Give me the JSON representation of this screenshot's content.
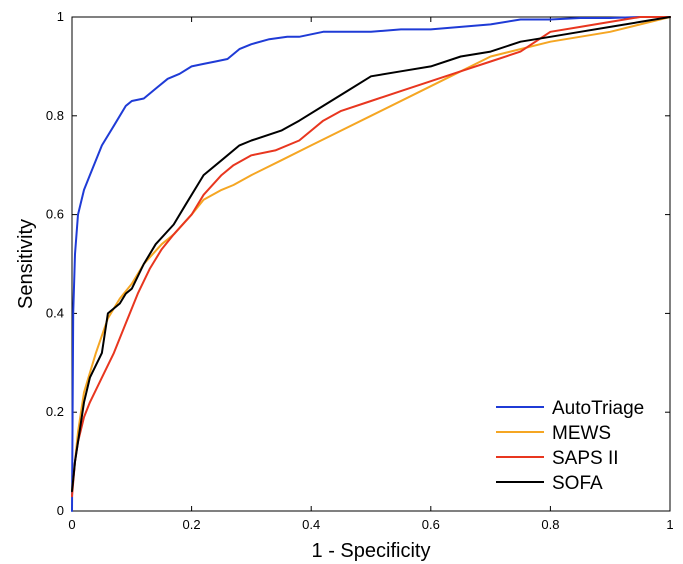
{
  "chart_data": {
    "type": "line",
    "title": "",
    "xlabel": "1 - Specificity",
    "ylabel": "Sensitivity",
    "xlim": [
      0,
      1
    ],
    "ylim": [
      0,
      1
    ],
    "xticks": [
      0,
      0.2,
      0.4,
      0.6,
      0.8,
      1
    ],
    "yticks": [
      0,
      0.2,
      0.4,
      0.6,
      0.8,
      1
    ],
    "xtick_labels": [
      "0",
      "0.2",
      "0.4",
      "0.6",
      "0.8",
      "1"
    ],
    "ytick_labels": [
      "0",
      "0.2",
      "0.4",
      "0.6",
      "0.8",
      "1"
    ],
    "grid": false,
    "legend_position": "bottom-right",
    "series": [
      {
        "name": "AutoTriage",
        "color": "#1f3bd6",
        "x": [
          0,
          0.002,
          0.005,
          0.01,
          0.02,
          0.03,
          0.05,
          0.07,
          0.09,
          0.1,
          0.12,
          0.14,
          0.16,
          0.18,
          0.2,
          0.22,
          0.24,
          0.26,
          0.28,
          0.3,
          0.33,
          0.36,
          0.38,
          0.4,
          0.42,
          0.45,
          0.5,
          0.55,
          0.6,
          0.65,
          0.7,
          0.75,
          0.8,
          0.85,
          0.9,
          0.95,
          1.0
        ],
        "y": [
          0,
          0.4,
          0.52,
          0.6,
          0.65,
          0.68,
          0.74,
          0.78,
          0.82,
          0.83,
          0.835,
          0.855,
          0.875,
          0.885,
          0.9,
          0.905,
          0.91,
          0.915,
          0.935,
          0.945,
          0.955,
          0.96,
          0.96,
          0.965,
          0.97,
          0.97,
          0.97,
          0.975,
          0.975,
          0.98,
          0.985,
          0.995,
          0.995,
          0.998,
          0.998,
          1.0,
          1.0
        ]
      },
      {
        "name": "MEWS",
        "color": "#f5a623",
        "x": [
          0,
          0.01,
          0.02,
          0.04,
          0.06,
          0.08,
          0.1,
          0.12,
          0.15,
          0.17,
          0.2,
          0.22,
          0.25,
          0.27,
          0.3,
          0.35,
          0.4,
          0.5,
          0.6,
          0.7,
          0.8,
          0.9,
          1.0
        ],
        "y": [
          0.04,
          0.16,
          0.24,
          0.32,
          0.39,
          0.43,
          0.46,
          0.5,
          0.54,
          0.56,
          0.6,
          0.63,
          0.65,
          0.66,
          0.68,
          0.71,
          0.74,
          0.8,
          0.86,
          0.92,
          0.95,
          0.97,
          1.0
        ]
      },
      {
        "name": "SAPS II",
        "color": "#e8361f",
        "x": [
          0,
          0.005,
          0.01,
          0.02,
          0.03,
          0.05,
          0.07,
          0.09,
          0.11,
          0.13,
          0.15,
          0.17,
          0.2,
          0.22,
          0.25,
          0.27,
          0.3,
          0.34,
          0.38,
          0.42,
          0.45,
          0.5,
          0.55,
          0.6,
          0.65,
          0.7,
          0.75,
          0.8,
          0.85,
          0.9,
          0.95,
          1.0
        ],
        "y": [
          0.03,
          0.1,
          0.14,
          0.19,
          0.22,
          0.27,
          0.32,
          0.38,
          0.44,
          0.49,
          0.53,
          0.56,
          0.6,
          0.64,
          0.68,
          0.7,
          0.72,
          0.73,
          0.75,
          0.79,
          0.81,
          0.83,
          0.85,
          0.87,
          0.89,
          0.91,
          0.93,
          0.97,
          0.98,
          0.99,
          1.0,
          1.0
        ]
      },
      {
        "name": "SOFA",
        "color": "#000000",
        "x": [
          0,
          0.005,
          0.01,
          0.02,
          0.03,
          0.05,
          0.06,
          0.08,
          0.09,
          0.1,
          0.12,
          0.14,
          0.17,
          0.19,
          0.21,
          0.22,
          0.25,
          0.28,
          0.3,
          0.35,
          0.38,
          0.42,
          0.46,
          0.5,
          0.55,
          0.6,
          0.65,
          0.7,
          0.75,
          0.8,
          0.85,
          0.9,
          0.95,
          1.0
        ],
        "y": [
          0.04,
          0.1,
          0.14,
          0.22,
          0.27,
          0.32,
          0.4,
          0.42,
          0.44,
          0.45,
          0.5,
          0.54,
          0.58,
          0.62,
          0.66,
          0.68,
          0.71,
          0.74,
          0.75,
          0.77,
          0.79,
          0.82,
          0.85,
          0.88,
          0.89,
          0.9,
          0.92,
          0.93,
          0.95,
          0.96,
          0.97,
          0.98,
          0.99,
          1.0
        ]
      }
    ]
  }
}
